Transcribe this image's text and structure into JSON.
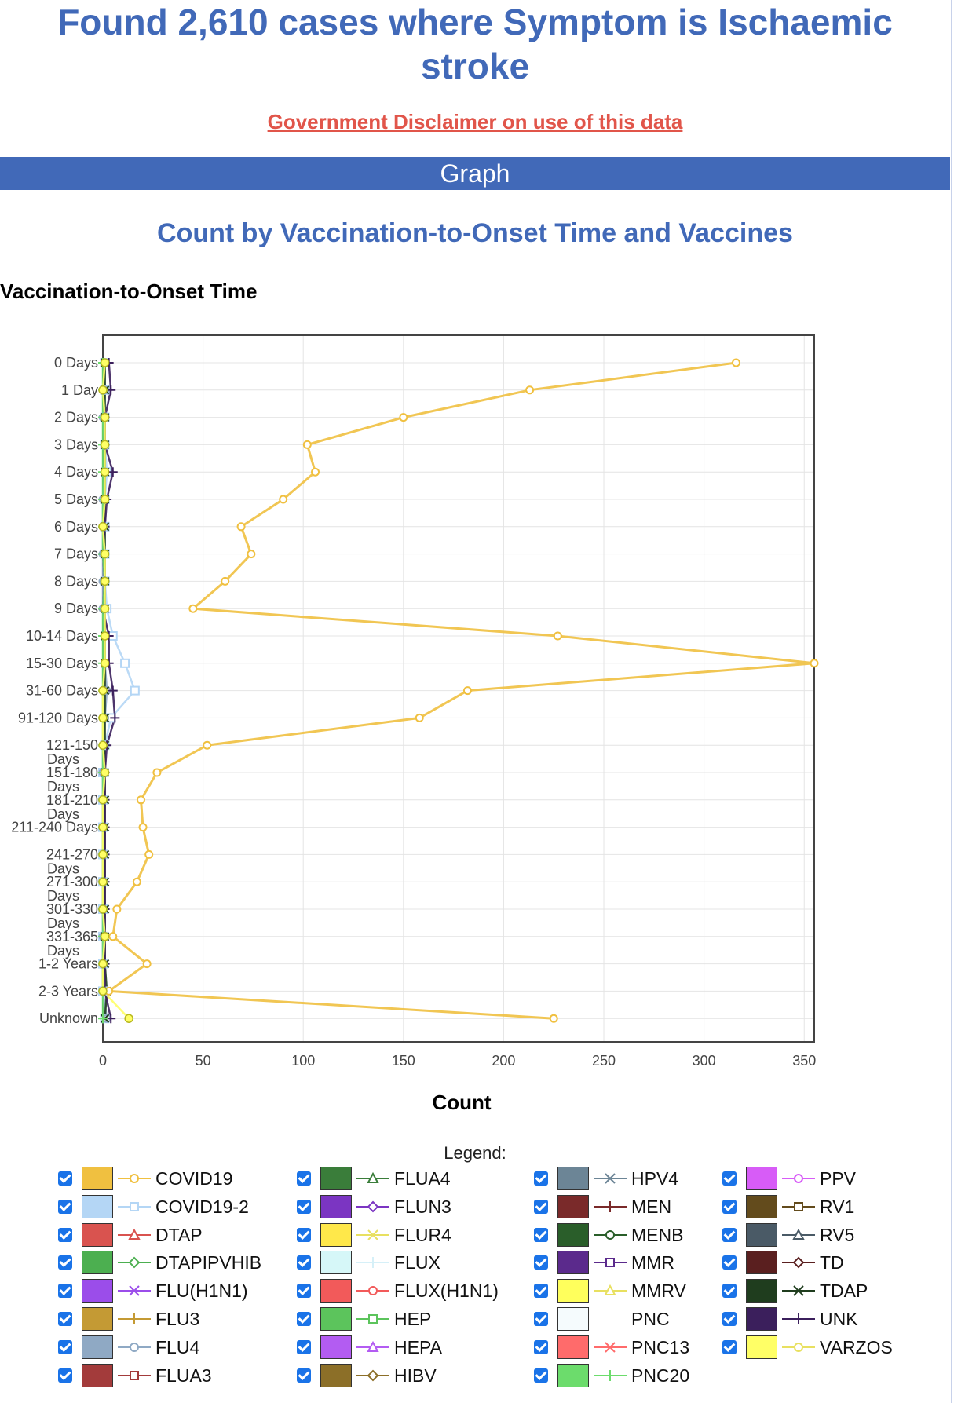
{
  "page": {
    "title": "Found 2,610 cases where Symptom is Ischaemic stroke",
    "disclaimer": "Government Disclaimer on use of this data",
    "section_label": "Graph",
    "chart_heading": "Count by Vaccination-to-Onset Time and Vaccines",
    "axis_heading": "Vaccination-to-Onset Time",
    "legend_title": "Legend:"
  },
  "chart_data": {
    "type": "line",
    "title": "Count by Vaccination-to-Onset Time and Vaccines",
    "xlabel": "Count",
    "ylabel": "Vaccination-to-Onset Time",
    "xlim": [
      0,
      355
    ],
    "x_ticks": [
      0,
      50,
      100,
      150,
      200,
      250,
      300,
      350
    ],
    "grid": true,
    "legend_placement": "bottom",
    "categories": [
      "0 Days",
      "1 Day",
      "2 Days",
      "3 Days",
      "4 Days",
      "5 Days",
      "6 Days",
      "7 Days",
      "8 Days",
      "9 Days",
      "10-14 Days",
      "15-30 Days",
      "31-60 Days",
      "91-120 Days",
      "121-150 Days",
      "151-180 Days",
      "181-210 Days",
      "211-240 Days",
      "241-270 Days",
      "271-300 Days",
      "301-330 Days",
      "331-365 Days",
      "1-2 Years",
      "2-3 Years",
      "Unknown"
    ],
    "series": [
      {
        "name": "COVID19",
        "color": "#f0c040",
        "marker": "circle",
        "values": [
          316,
          213,
          150,
          102,
          106,
          90,
          69,
          74,
          61,
          45,
          227,
          355,
          182,
          158,
          52,
          27,
          19,
          20,
          23,
          17,
          7,
          5,
          22,
          3,
          225
        ]
      },
      {
        "name": "COVID19-2",
        "color": "#b4d6f5",
        "marker": "square",
        "values": [
          1,
          1,
          1,
          1,
          2,
          1,
          1,
          1,
          1,
          2,
          5,
          11,
          16,
          4,
          1,
          0,
          0,
          0,
          0,
          0,
          0,
          0,
          0,
          0,
          1
        ]
      },
      {
        "name": "FLU4",
        "color": "#8fa9c4",
        "marker": "circle",
        "values": [
          1,
          1,
          0,
          1,
          1,
          0,
          0,
          0,
          0,
          0,
          1,
          1,
          2,
          1,
          0,
          0,
          0,
          0,
          0,
          0,
          0,
          0,
          0,
          0,
          2
        ]
      },
      {
        "name": "TDAP",
        "color": "#1f3d1e",
        "marker": "x",
        "values": [
          1,
          1,
          1,
          1,
          1,
          1,
          1,
          1,
          1,
          1,
          1,
          1,
          1,
          1,
          1,
          1,
          1,
          1,
          1,
          1,
          1,
          1,
          1,
          2,
          1
        ]
      },
      {
        "name": "UNK",
        "color": "#3b1f5c",
        "marker": "plus",
        "values": [
          3,
          4,
          1,
          1,
          5,
          2,
          1,
          0,
          1,
          0,
          3,
          3,
          5,
          6,
          2,
          1,
          1,
          1,
          1,
          1,
          1,
          1,
          1,
          1,
          4
        ]
      },
      {
        "name": "PNC20",
        "color": "#6cdc6c",
        "marker": "plus",
        "values": [
          0,
          0,
          0,
          0,
          0,
          0,
          0,
          0,
          1,
          0,
          0,
          0,
          0,
          0,
          0,
          0,
          0,
          0,
          0,
          0,
          0,
          0,
          0,
          0,
          0
        ]
      },
      {
        "name": "VARZOS",
        "color": "#ffff66",
        "marker": "circle",
        "values": [
          1,
          0,
          1,
          1,
          1,
          1,
          0,
          1,
          1,
          1,
          1,
          1,
          0,
          0,
          0,
          1,
          0,
          0,
          0,
          0,
          0,
          1,
          0,
          0,
          13
        ]
      }
    ],
    "legend": [
      {
        "name": "COVID19",
        "color": "#f0c040",
        "marker": "circle"
      },
      {
        "name": "COVID19-2",
        "color": "#b4d6f5",
        "marker": "square"
      },
      {
        "name": "DTAP",
        "color": "#d9534f",
        "marker": "triangle"
      },
      {
        "name": "DTAPIPVHIB",
        "color": "#4caf50",
        "marker": "diamond"
      },
      {
        "name": "FLU(H1N1)",
        "color": "#9b4dea",
        "marker": "x"
      },
      {
        "name": "FLU3",
        "color": "#c49a34",
        "marker": "plus"
      },
      {
        "name": "FLU4",
        "color": "#8fa9c4",
        "marker": "circle"
      },
      {
        "name": "FLUA3",
        "color": "#a33b3b",
        "marker": "square"
      },
      {
        "name": "FLUA4",
        "color": "#3a7d3a",
        "marker": "triangle"
      },
      {
        "name": "FLUN3",
        "color": "#7b35c2",
        "marker": "diamond"
      },
      {
        "name": "FLUR4",
        "color": "#ffe84a",
        "marker": "x"
      },
      {
        "name": "FLUX",
        "color": "#d6f7f8",
        "marker": "plus"
      },
      {
        "name": "FLUX(H1N1)",
        "color": "#f25a5a",
        "marker": "circle"
      },
      {
        "name": "HEP",
        "color": "#5cc45c",
        "marker": "square"
      },
      {
        "name": "HEPA",
        "color": "#b35cf2",
        "marker": "triangle"
      },
      {
        "name": "HIBV",
        "color": "#8c6f28",
        "marker": "diamond"
      },
      {
        "name": "HPV4",
        "color": "#6c8596",
        "marker": "x"
      },
      {
        "name": "MEN",
        "color": "#7a2a2a",
        "marker": "plus"
      },
      {
        "name": "MENB",
        "color": "#2a5e2a",
        "marker": "circle"
      },
      {
        "name": "MMR",
        "color": "#5b2a8c",
        "marker": "square"
      },
      {
        "name": "MMRV",
        "color": "#ffff5c",
        "marker": "triangle"
      },
      {
        "name": "PNC",
        "color": "#f5fbfd",
        "marker": "none"
      },
      {
        "name": "PNC13",
        "color": "#ff6b6b",
        "marker": "x"
      },
      {
        "name": "PNC20",
        "color": "#6cdc6c",
        "marker": "plus"
      },
      {
        "name": "PPV",
        "color": "#d75cf7",
        "marker": "circle"
      },
      {
        "name": "RV1",
        "color": "#634b1c",
        "marker": "square"
      },
      {
        "name": "RV5",
        "color": "#4a5a66",
        "marker": "triangle"
      },
      {
        "name": "TD",
        "color": "#5a1f1f",
        "marker": "diamond"
      },
      {
        "name": "TDAP",
        "color": "#1f3d1e",
        "marker": "x"
      },
      {
        "name": "UNK",
        "color": "#3b1f5c",
        "marker": "plus"
      },
      {
        "name": "VARZOS",
        "color": "#ffff66",
        "marker": "circle"
      }
    ]
  }
}
